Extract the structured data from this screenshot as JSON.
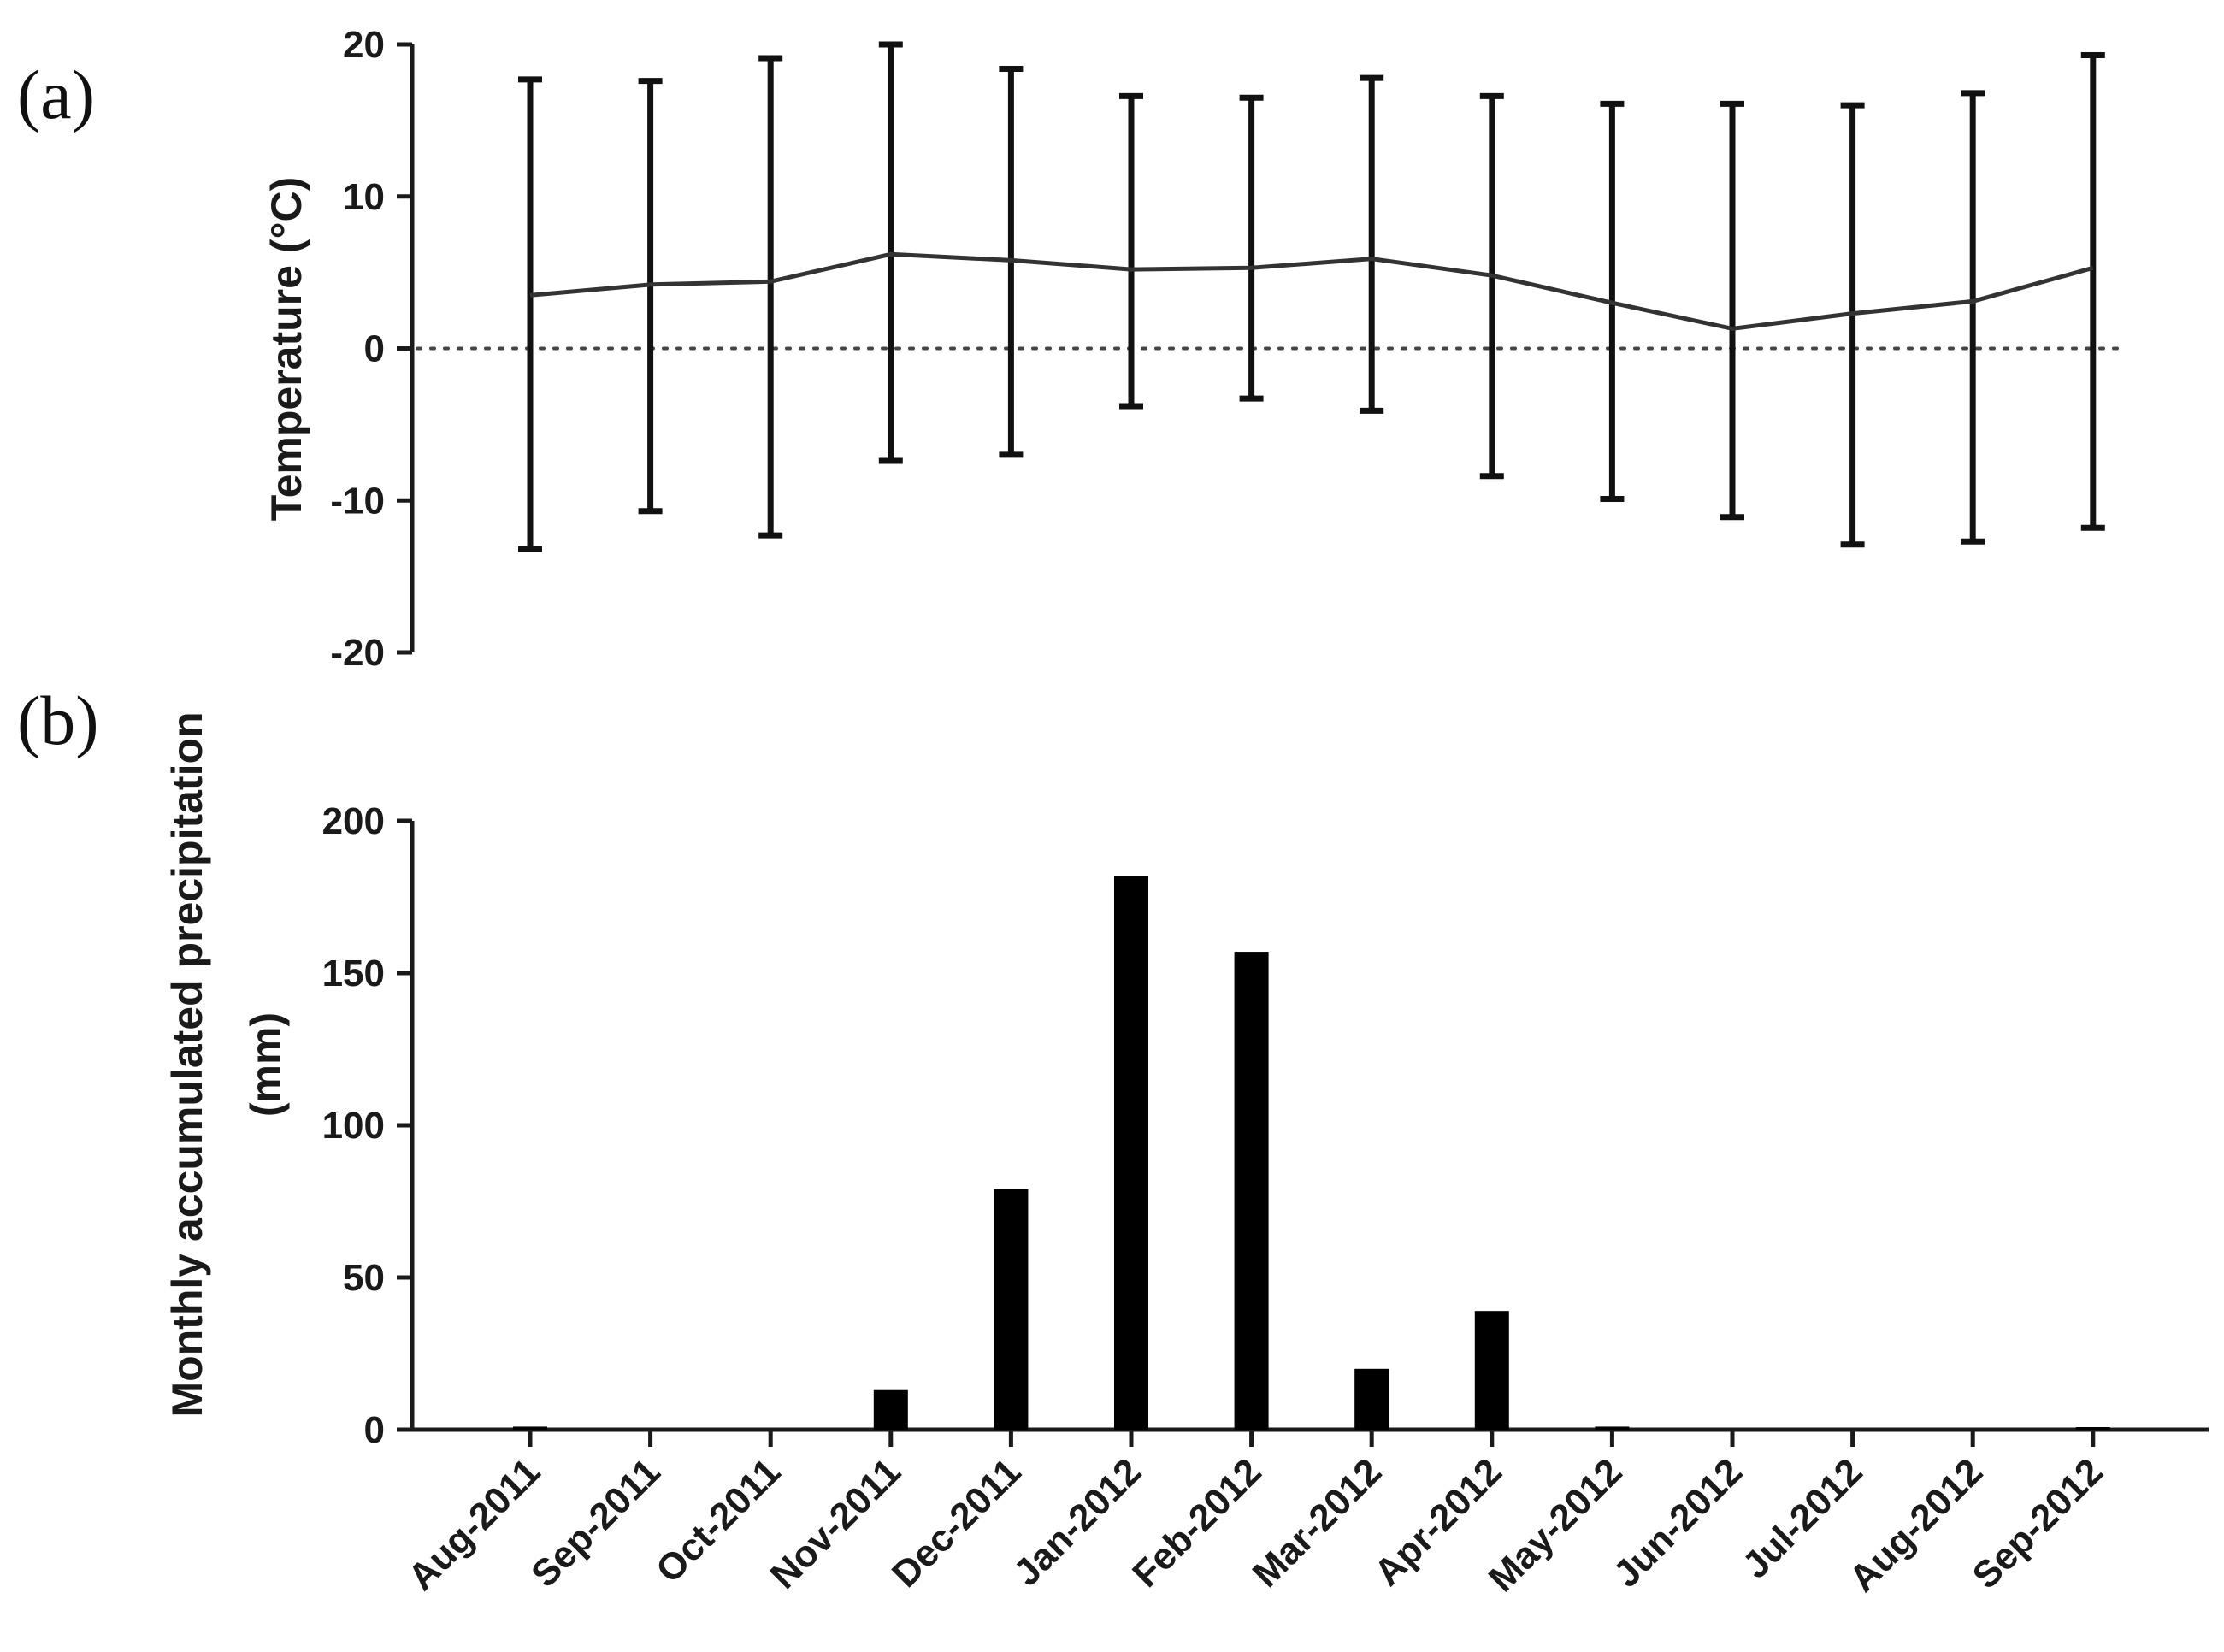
{
  "panels": {
    "a_label": "(a)",
    "b_label": "(b)"
  },
  "chart_data": [
    {
      "type": "line",
      "panel": "(a)",
      "title": "",
      "xlabel": "",
      "ylabel": "Temperature (°C)",
      "ylim": [
        -20,
        20
      ],
      "yticks": [
        "20",
        "10",
        "0",
        "-10",
        "-20"
      ],
      "reference_line": {
        "y": 0,
        "style": "dotted"
      },
      "categories": [
        "Aug-2011",
        "Sep-2011",
        "Oct-2011",
        "Nov-2011",
        "Dec-2011",
        "Jan-2012",
        "Feb-2012",
        "Mar-2012",
        "Apr-2012",
        "May-2012",
        "Jun-2012",
        "Jul-2012",
        "Aug-2012",
        "Sep-2012"
      ],
      "series": [
        {
          "mean": [
            3.5,
            4.2,
            4.4,
            6.2,
            5.8,
            5.2,
            5.3,
            5.9,
            4.8,
            3.0,
            1.3,
            2.3,
            3.1,
            5.3
          ],
          "max": [
            17.7,
            17.6,
            19.1,
            20.0,
            18.4,
            16.6,
            16.5,
            17.8,
            16.6,
            16.1,
            16.1,
            16.0,
            16.8,
            19.3
          ],
          "min": [
            -13.2,
            -10.7,
            -12.3,
            -7.4,
            -7.0,
            -3.8,
            -3.3,
            -4.1,
            -8.4,
            -9.9,
            -11.1,
            -12.9,
            -12.7,
            -11.8
          ]
        }
      ],
      "grid": false,
      "colors": {
        "line": "#333333",
        "error_bars": "#111111"
      }
    },
    {
      "type": "bar",
      "panel": "(b)",
      "title": "",
      "xlabel": "",
      "ylabel_line1": "Monthly accumulated precipitation",
      "ylabel_line2": "(mm)",
      "ylim": [
        0,
        200
      ],
      "yticks": [
        "200",
        "150",
        "100",
        "50",
        "0"
      ],
      "categories": [
        "Aug-2011",
        "Sep-2011",
        "Oct-2011",
        "Nov-2011",
        "Dec-2011",
        "Jan-2012",
        "Feb-2012",
        "Mar-2012",
        "Apr-2012",
        "May-2012",
        "Jun-2012",
        "Jul-2012",
        "Aug-2012",
        "Sep-2012"
      ],
      "values": [
        1,
        0,
        0,
        13,
        79,
        182,
        157,
        20,
        39,
        1,
        0,
        0,
        0,
        0.5
      ],
      "grid": false,
      "colors": {
        "bar": "#000000"
      }
    }
  ]
}
